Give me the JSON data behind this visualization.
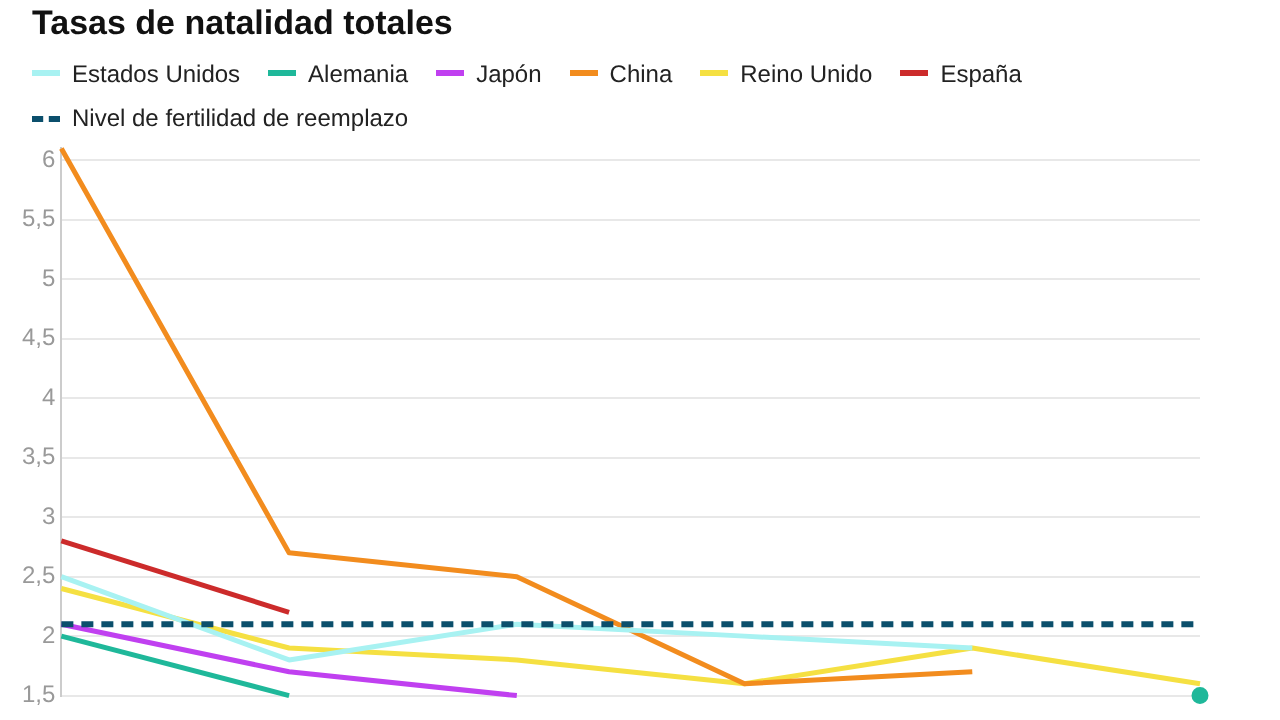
{
  "chart_data": {
    "type": "line",
    "title": "Tasas de natalidad totales",
    "categories": [
      null,
      null,
      null,
      null,
      null,
      null
    ],
    "series": [
      {
        "name": "Estados Unidos",
        "color": "#a8f2f2",
        "values": [
          2.5,
          1.8,
          2.1,
          2.0,
          1.9,
          null
        ]
      },
      {
        "name": "Alemania",
        "color": "#1fb89a",
        "values": [
          2.0,
          1.5,
          null,
          null,
          null,
          1.5
        ]
      },
      {
        "name": "Japón",
        "color": "#c040f0",
        "values": [
          2.1,
          1.7,
          1.5,
          null,
          null,
          null
        ]
      },
      {
        "name": "China",
        "color": "#f28c1e",
        "values": [
          6.1,
          2.7,
          2.5,
          1.6,
          1.7,
          null
        ]
      },
      {
        "name": "Reino Unido",
        "color": "#f5e042",
        "values": [
          2.4,
          1.9,
          1.8,
          1.6,
          1.9,
          1.6
        ]
      },
      {
        "name": "España",
        "color": "#cc2b2b",
        "values": [
          2.8,
          2.2,
          null,
          null,
          null,
          null
        ]
      }
    ],
    "ref_lines": [
      {
        "axis": "y",
        "value": 2.1,
        "label": "Nivel de fertilidad de reemplazo",
        "color": "#0b4f6c",
        "line_style": "dashed"
      }
    ],
    "ylim": [
      1.5,
      6.1
    ],
    "yticks": [
      {
        "value": 1.5,
        "label": "1,5"
      },
      2,
      {
        "value": 2.5,
        "label": "2,5"
      },
      3,
      {
        "value": 3.5,
        "label": "3,5"
      },
      4,
      {
        "value": 4.5,
        "label": "4,5"
      },
      5,
      {
        "value": 5.5,
        "label": "5,5"
      },
      6
    ],
    "grid": "y",
    "legend": "top left",
    "tick_labels": "y",
    "marker": "none",
    "line_style": "solid"
  }
}
